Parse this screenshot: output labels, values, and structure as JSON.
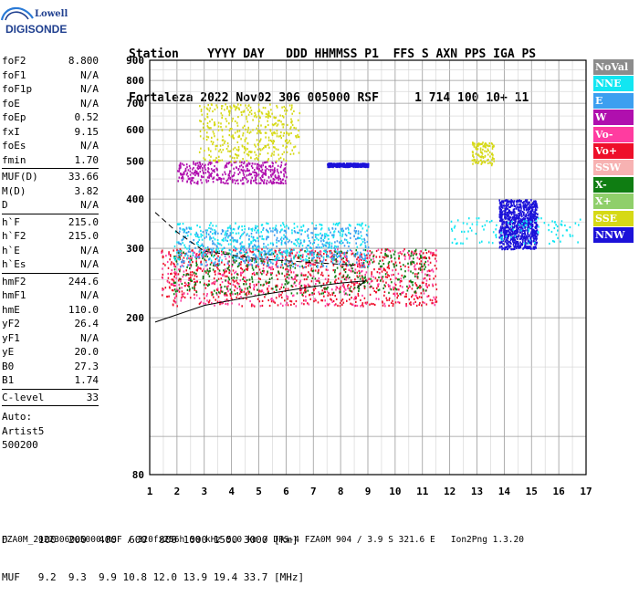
{
  "logo": {
    "brand": "Lowell",
    "product": "DIGISONDE",
    "color_dark": "#1f3f8f",
    "color_light": "#2a7ad6"
  },
  "header": {
    "line1": "Station    YYYY DAY   DDD HHMMSS P1  FFS S AXN PPS IGA PS",
    "line2": "Fortaleza 2022 Nov02 306 005000 RSF     1 714 100 10+ 11"
  },
  "params": {
    "group1": [
      {
        "name": "foF2",
        "value": "8.800"
      },
      {
        "name": "foF1",
        "value": "N/A"
      },
      {
        "name": "foF1p",
        "value": "N/A"
      },
      {
        "name": "foE",
        "value": "N/A"
      },
      {
        "name": "foEp",
        "value": "0.52"
      },
      {
        "name": "fxI",
        "value": "9.15"
      },
      {
        "name": "foEs",
        "value": "N/A"
      },
      {
        "name": "fmin",
        "value": "1.70"
      }
    ],
    "group2": [
      {
        "name": "MUF(D)",
        "value": "33.66"
      },
      {
        "name": "M(D)",
        "value": "3.82"
      },
      {
        "name": "D",
        "value": "N/A"
      }
    ],
    "group3": [
      {
        "name": "h`F",
        "value": "215.0"
      },
      {
        "name": "h`F2",
        "value": "215.0"
      },
      {
        "name": "h`E",
        "value": "N/A"
      },
      {
        "name": "h`Es",
        "value": "N/A"
      }
    ],
    "group4": [
      {
        "name": "hmF2",
        "value": "244.6"
      },
      {
        "name": "hmF1",
        "value": "N/A"
      },
      {
        "name": "hmE",
        "value": "110.0"
      },
      {
        "name": "yF2",
        "value": "26.4"
      },
      {
        "name": "yF1",
        "value": "N/A"
      },
      {
        "name": "yE",
        "value": "20.0"
      },
      {
        "name": "B0",
        "value": "27.3"
      },
      {
        "name": "B1",
        "value": "1.74"
      }
    ],
    "group5": [
      {
        "name": "C-level",
        "value": "33"
      }
    ],
    "auto_label": "Auto:",
    "auto_software": "Artist5",
    "auto_version": "500200"
  },
  "legend": [
    {
      "label": "NoVal",
      "color": "#8c8c8c"
    },
    {
      "label": "NNE",
      "color": "#12e6f2"
    },
    {
      "label": "E",
      "color": "#3c9ff0"
    },
    {
      "label": "W",
      "color": "#b00fae"
    },
    {
      "label": "Vo-",
      "color": "#ff3ca0"
    },
    {
      "label": "Vo+",
      "color": "#ee0f2a"
    },
    {
      "label": "SSW",
      "color": "#f7b2b2"
    },
    {
      "label": "X-",
      "color": "#0f7d12"
    },
    {
      "label": "X+",
      "color": "#8fcf6a"
    },
    {
      "label": "SSE",
      "color": "#d6d916"
    },
    {
      "label": "NNW",
      "color": "#1c12d9"
    }
  ],
  "footer": {
    "d_row": "D     100  200  400  600  800 1000 1500 3000 [km]",
    "muf_row": "MUF   9.2  9.3  9.9 10.8 12.0 13.9 19.4 33.7 [MHz]",
    "info_line": "FZA0M_2022306005000.RSF / 320fx256h 50 kHz 5.0 km / DPS-4 FZA0M 904 / 3.9 S 321.6 E   Ion2Png 1.3.20"
  },
  "chart_data": {
    "type": "scatter",
    "title": "",
    "xlabel": "",
    "ylabel": "",
    "xlim": [
      1,
      17
    ],
    "ylim": [
      80,
      900
    ],
    "y_scale": "log",
    "x_ticks": [
      1,
      2,
      3,
      4,
      5,
      6,
      7,
      8,
      9,
      10,
      11,
      12,
      13,
      14,
      15,
      16,
      17
    ],
    "y_ticks": [
      80,
      200,
      300,
      400,
      500,
      600,
      700,
      800,
      900
    ],
    "grid": true,
    "clusters": [
      {
        "series": "Vo+",
        "x": [
          1.4,
          11.5
        ],
        "y": [
          215,
          300
        ],
        "density": "high"
      },
      {
        "series": "Vo-",
        "x": [
          1.4,
          11.5
        ],
        "y": [
          215,
          300
        ],
        "density": "medium"
      },
      {
        "series": "X-",
        "x": [
          1.8,
          11.2
        ],
        "y": [
          230,
          300
        ],
        "density": "medium"
      },
      {
        "series": "NNE",
        "x": [
          1.8,
          9.0
        ],
        "y": [
          280,
          350
        ],
        "density": "medium"
      },
      {
        "series": "E",
        "x": [
          2.0,
          9.0
        ],
        "y": [
          270,
          340
        ],
        "density": "medium"
      },
      {
        "series": "W",
        "x": [
          2.0,
          6.0
        ],
        "y": [
          440,
          500
        ],
        "density": "medium"
      },
      {
        "series": "SSE",
        "x": [
          2.8,
          6.5
        ],
        "y": [
          500,
          700
        ],
        "density": "medium"
      },
      {
        "series": "NNW",
        "x": [
          13.8,
          15.2
        ],
        "y": [
          300,
          400
        ],
        "density": "high"
      },
      {
        "series": "NNW",
        "x": [
          7.5,
          9.0
        ],
        "y": [
          485,
          495
        ],
        "density": "medium"
      },
      {
        "series": "NNE",
        "x": [
          12.0,
          16.8
        ],
        "y": [
          310,
          360
        ],
        "density": "low"
      },
      {
        "series": "SSE",
        "x": [
          12.8,
          13.6
        ],
        "y": [
          490,
          560
        ],
        "density": "low"
      }
    ],
    "lines": [
      {
        "name": "",
        "style": "solid",
        "points": [
          [
            1.2,
            195
          ],
          [
            3.0,
            215
          ],
          [
            5.0,
            228
          ],
          [
            7.0,
            240
          ],
          [
            8.0,
            245
          ],
          [
            8.9,
            248
          ],
          [
            8.6,
            238
          ]
        ]
      },
      {
        "name": "",
        "style": "dashed",
        "points": [
          [
            1.2,
            370
          ],
          [
            2.0,
            330
          ],
          [
            3.0,
            295
          ],
          [
            5.0,
            282
          ],
          [
            7.0,
            276
          ],
          [
            8.5,
            272
          ]
        ]
      }
    ]
  }
}
